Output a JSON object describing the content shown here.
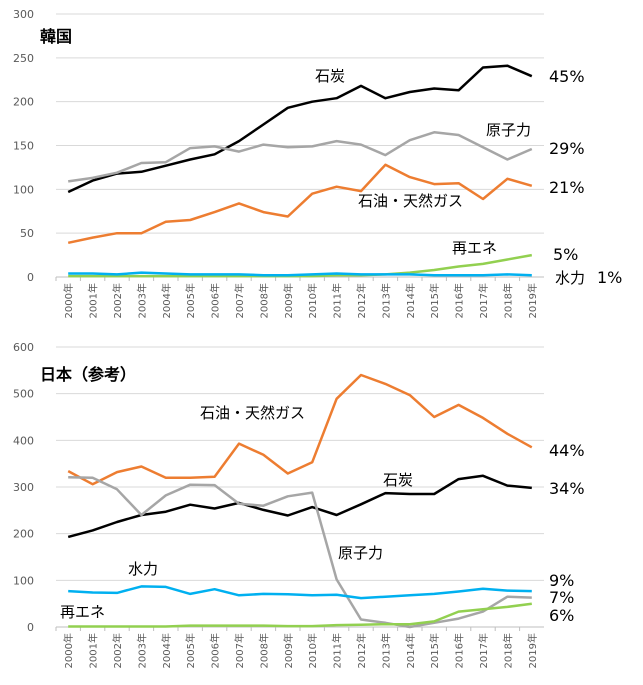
{
  "chart_data": [
    {
      "type": "line",
      "title": "韓国",
      "categories": [
        "2000年",
        "2001年",
        "2002年",
        "2003年",
        "2004年",
        "2005年",
        "2006年",
        "2007年",
        "2008年",
        "2009年",
        "2010年",
        "2011年",
        "2012年",
        "2013年",
        "2014年",
        "2015年",
        "2016年",
        "2017年",
        "2018年",
        "2019年"
      ],
      "ylim": [
        0,
        300
      ],
      "yticks": [
        0,
        50,
        100,
        150,
        200,
        250,
        300
      ],
      "grid": true,
      "series": [
        {
          "name": "石炭",
          "color": "#000000",
          "end_label": "45%",
          "values": [
            97,
            110,
            118,
            120,
            127,
            134,
            140,
            155,
            174,
            193,
            200,
            204,
            218,
            204,
            211,
            215,
            213,
            239,
            241,
            229
          ]
        },
        {
          "name": "原子力",
          "color": "#a6a6a6",
          "end_label": "29%",
          "values": [
            109,
            113,
            119,
            130,
            131,
            147,
            149,
            143,
            151,
            148,
            149,
            155,
            151,
            139,
            156,
            165,
            162,
            148,
            134,
            146
          ]
        },
        {
          "name": "石油・天然ガス",
          "color": "#ed7d31",
          "end_label": "21%",
          "values": [
            39,
            45,
            50,
            50,
            63,
            65,
            74,
            84,
            74,
            69,
            95,
            103,
            98,
            128,
            114,
            106,
            107,
            89,
            112,
            104
          ]
        },
        {
          "name": "再エネ",
          "color": "#92d050",
          "end_label": "5%",
          "values": [
            1,
            1,
            1,
            1,
            1,
            1,
            1,
            1,
            1,
            1,
            1,
            2,
            2,
            3,
            5,
            8,
            12,
            15,
            20,
            25
          ]
        },
        {
          "name": "水力",
          "color": "#00b0f0",
          "end_label": "1%",
          "values": [
            4,
            4,
            3,
            5,
            4,
            3,
            3,
            3,
            2,
            2,
            3,
            4,
            3,
            3,
            3,
            2,
            2,
            2,
            3,
            2
          ]
        }
      ]
    },
    {
      "type": "line",
      "title": "日本（参考）",
      "categories": [
        "2000年",
        "2001年",
        "2002年",
        "2003年",
        "2004年",
        "2005年",
        "2006年",
        "2007年",
        "2008年",
        "2009年",
        "2010年",
        "2011年",
        "2012年",
        "2013年",
        "2014年",
        "2015年",
        "2016年",
        "2017年",
        "2018年",
        "2019年"
      ],
      "ylim": [
        0,
        600
      ],
      "yticks": [
        0,
        100,
        200,
        300,
        400,
        500,
        600
      ],
      "grid": true,
      "series": [
        {
          "name": "石油・天然ガス",
          "color": "#ed7d31",
          "end_label": "44%",
          "values": [
            334,
            306,
            332,
            344,
            320,
            320,
            322,
            393,
            369,
            329,
            353,
            489,
            540,
            521,
            497,
            450,
            476,
            448,
            414,
            385
          ]
        },
        {
          "name": "石炭",
          "color": "#000000",
          "end_label": "34%",
          "values": [
            193,
            207,
            225,
            240,
            247,
            262,
            254,
            266,
            251,
            239,
            257,
            240,
            263,
            287,
            285,
            285,
            317,
            324,
            303,
            298
          ]
        },
        {
          "name": "原子力",
          "color": "#a6a6a6",
          "end_label": "7%",
          "values": [
            321,
            320,
            295,
            240,
            282,
            305,
            304,
            264,
            260,
            280,
            288,
            102,
            16,
            9,
            0,
            9,
            18,
            33,
            65,
            63
          ]
        },
        {
          "name": "水力",
          "color": "#00b0f0",
          "end_label": "9%",
          "values": [
            77,
            74,
            73,
            87,
            86,
            71,
            81,
            68,
            71,
            70,
            68,
            69,
            62,
            65,
            68,
            71,
            76,
            82,
            78,
            77
          ]
        },
        {
          "name": "再エネ",
          "color": "#92d050",
          "end_label": "6%",
          "values": [
            1,
            1,
            1,
            1,
            1,
            3,
            3,
            3,
            3,
            2,
            2,
            4,
            5,
            6,
            6,
            12,
            33,
            38,
            43,
            50
          ]
        }
      ]
    }
  ]
}
